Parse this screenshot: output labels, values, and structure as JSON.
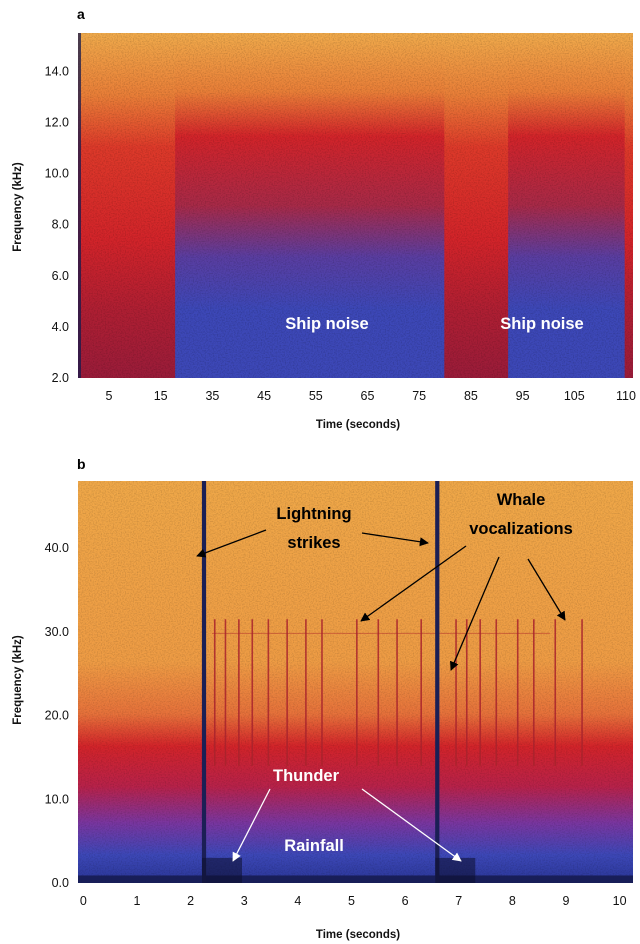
{
  "chart_data": [
    {
      "type": "heatmap",
      "panel_label": "a",
      "xlabel": "Time (seconds)",
      "ylabel": "Frequency (kHz)",
      "x_tick_labels": [
        "5",
        "15",
        "35",
        "45",
        "55",
        "65",
        "75",
        "85",
        "95",
        "105",
        "110"
      ],
      "y_tick_labels": [
        "2.0",
        "4.0",
        "6.0",
        "8.0",
        "10.0",
        "12.0",
        "14.0"
      ],
      "ylim": [
        2.0,
        15.5
      ],
      "annotations": [
        {
          "text": "Ship noise",
          "color": "#ffffff"
        },
        {
          "text": "Ship noise",
          "color": "#ffffff"
        }
      ],
      "palette": {
        "high": "#f1ab4c",
        "mid": "#d3242a",
        "low": "#3d48b8",
        "dark": "#151a4d"
      }
    },
    {
      "type": "heatmap",
      "panel_label": "b",
      "xlabel": "Time (seconds)",
      "ylabel": "Frequency (kHz)",
      "x_ticks": [
        0,
        1,
        2,
        3,
        4,
        5,
        6,
        7,
        8,
        9,
        10
      ],
      "x_tick_labels": [
        "0",
        "1",
        "2",
        "3",
        "4",
        "5",
        "6",
        "7",
        "8",
        "9",
        "10"
      ],
      "y_ticks": [
        0,
        10,
        20,
        30,
        40
      ],
      "y_tick_labels": [
        "0.0",
        "10.0",
        "20.0",
        "30.0",
        "40.0"
      ],
      "xlim": [
        -0.1,
        10.25
      ],
      "ylim": [
        0,
        48
      ],
      "lightning_times": [
        2.25,
        6.6
      ],
      "whale_click_times": [
        2.45,
        2.65,
        2.9,
        3.15,
        3.45,
        3.8,
        4.15,
        4.45,
        5.1,
        5.5,
        5.85,
        6.3,
        6.95,
        7.15,
        7.4,
        7.7,
        8.1,
        8.4,
        8.8,
        9.3
      ],
      "annotations": [
        {
          "text": "Lightning",
          "color": "#000000"
        },
        {
          "text": "strikes",
          "color": "#000000"
        },
        {
          "text": "Whale",
          "color": "#000000"
        },
        {
          "text": "vocalizations",
          "color": "#000000"
        },
        {
          "text": "Thunder",
          "color": "#ffffff"
        },
        {
          "text": "Rainfall",
          "color": "#ffffff"
        }
      ],
      "palette": {
        "high": "#f1ab4c",
        "mid": "#d3242a",
        "low": "#3d48b8",
        "dark": "#151a4d"
      }
    }
  ]
}
